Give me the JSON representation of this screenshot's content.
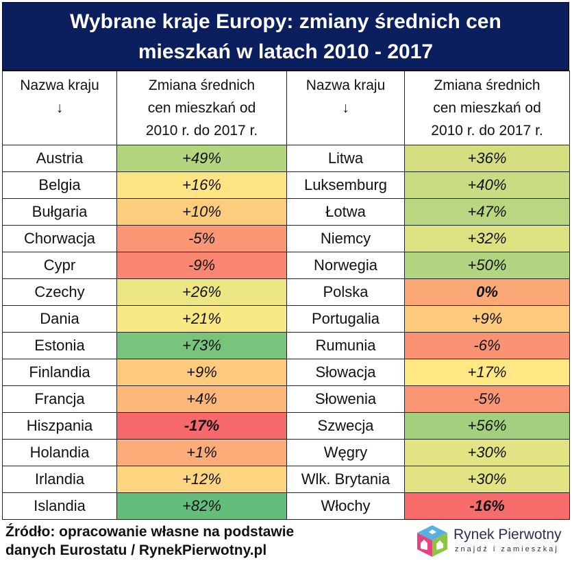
{
  "title": {
    "line1": "Wybrane kraje Europy: zmiany średnich cen",
    "line2": "mieszkań w latach 2010 - 2017"
  },
  "headers": {
    "country": "Nazwa kraju",
    "arrow": "↓",
    "change_line1": "Zmiana średnich",
    "change_line2": "cen mieszkań od",
    "change_line3": "2010 r. do 2017 r."
  },
  "color_scale": {
    "low": "#f8696b",
    "mid": "#ffeb84",
    "high": "#63be7b"
  },
  "left": [
    {
      "country": "Austria",
      "change": "+49%",
      "value": 49
    },
    {
      "country": "Belgia",
      "change": "+16%",
      "value": 16
    },
    {
      "country": "Bułgaria",
      "change": "+10%",
      "value": 10
    },
    {
      "country": "Chorwacja",
      "change": "-5%",
      "value": -5
    },
    {
      "country": "Cypr",
      "change": "-9%",
      "value": -9
    },
    {
      "country": "Czechy",
      "change": "+26%",
      "value": 26
    },
    {
      "country": "Dania",
      "change": "+21%",
      "value": 21
    },
    {
      "country": "Estonia",
      "change": "+73%",
      "value": 73
    },
    {
      "country": "Finlandia",
      "change": "+9%",
      "value": 9
    },
    {
      "country": "Francja",
      "change": "+4%",
      "value": 4
    },
    {
      "country": "Hiszpania",
      "change": "-17%",
      "value": -17,
      "emphasis": true
    },
    {
      "country": "Holandia",
      "change": "+1%",
      "value": 1
    },
    {
      "country": "Irlandia",
      "change": "+12%",
      "value": 12
    },
    {
      "country": "Islandia",
      "change": "+82%",
      "value": 82
    }
  ],
  "right": [
    {
      "country": "Litwa",
      "change": "+36%",
      "value": 36
    },
    {
      "country": "Luksemburg",
      "change": "+40%",
      "value": 40
    },
    {
      "country": "Łotwa",
      "change": "+47%",
      "value": 47
    },
    {
      "country": "Niemcy",
      "change": "+32%",
      "value": 32
    },
    {
      "country": "Norwegia",
      "change": "+50%",
      "value": 50
    },
    {
      "country": "Polska",
      "change": "0%",
      "value": 0,
      "emphasis": true
    },
    {
      "country": "Portugalia",
      "change": "+9%",
      "value": 9
    },
    {
      "country": "Rumunia",
      "change": "-6%",
      "value": -6
    },
    {
      "country": "Słowacja",
      "change": "+17%",
      "value": 17
    },
    {
      "country": "Słowenia",
      "change": "-5%",
      "value": -5
    },
    {
      "country": "Szwecja",
      "change": "+56%",
      "value": 56
    },
    {
      "country": "Węgry",
      "change": "+30%",
      "value": 30
    },
    {
      "country": "Wlk. Brytania",
      "change": "+30%",
      "value": 30
    },
    {
      "country": "Włochy",
      "change": "-16%",
      "value": -16,
      "emphasis": true
    }
  ],
  "footer": {
    "line1": "Źródło: opracowanie własne na podstawie",
    "line2": "danych Eurostatu / RynekPierwotny.pl"
  },
  "logo": {
    "brand": "Rynek Pierwotny",
    "tagline": "znajdź i zamieszkaj"
  }
}
